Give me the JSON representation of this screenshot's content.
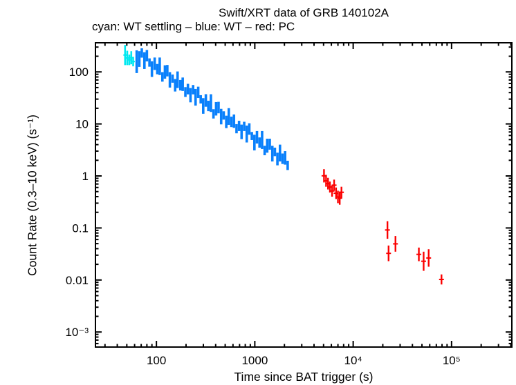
{
  "chart_data": {
    "type": "scatter",
    "title": "Swift/XRT data of GRB 140102A",
    "subtitle": "cyan: WT settling – blue: WT – red: PC",
    "xlabel": "Time since BAT trigger (s)",
    "ylabel": "Count Rate (0.3–10 keV) (s⁻¹)",
    "xscale": "log",
    "yscale": "log",
    "xlim": [
      24,
      410000
    ],
    "ylim": [
      0.000514,
      363
    ],
    "grid": false,
    "legend_position": "subtitle-line",
    "frame_color": "#000000",
    "background_color": "#ffffff",
    "x_major_ticks": [
      {
        "value": 100,
        "label": "100"
      },
      {
        "value": 1000,
        "label": "1000"
      },
      {
        "value": 10000,
        "label": "10⁴"
      },
      {
        "value": 100000,
        "label": "10⁵"
      }
    ],
    "y_major_ticks": [
      {
        "value": 100,
        "label": "100"
      },
      {
        "value": 10,
        "label": "10"
      },
      {
        "value": 1,
        "label": "1"
      },
      {
        "value": 0.1,
        "label": "0.1"
      },
      {
        "value": 0.01,
        "label": "0.01"
      },
      {
        "value": 0.001,
        "label": "10⁻³"
      }
    ],
    "series": [
      {
        "name": "WT settling",
        "mode": "vertical-error-bars",
        "color": "#00e8f0",
        "bar_width": 2.6,
        "cap_width": 5,
        "points_format": [
          "time_s",
          "rate_lo",
          "rate_hi"
        ],
        "points": [
          [
            48,
            135,
            330
          ],
          [
            50.5,
            135,
            255
          ],
          [
            53,
            135,
            215
          ],
          [
            55.5,
            140,
            250
          ],
          [
            58,
            128,
            195
          ]
        ]
      },
      {
        "name": "WT",
        "mode": "vertical-error-bars",
        "color": "#0a80fb",
        "bar_width": 3.6,
        "cap_width": 0,
        "points_format": [
          "time_s",
          "rate_lo",
          "rate_hi"
        ],
        "points": [
          [
            63,
            95,
            260
          ],
          [
            67,
            125,
            250
          ],
          [
            71,
            188,
            284
          ],
          [
            75.5,
            114,
            239
          ],
          [
            80,
            159,
            264
          ],
          [
            85,
            126,
            182
          ],
          [
            90,
            80,
            160
          ],
          [
            96,
            109,
            189
          ],
          [
            102,
            90,
            142
          ],
          [
            108,
            87,
            189
          ],
          [
            115,
            65,
            99
          ],
          [
            122,
            74,
            134
          ],
          [
            129,
            82,
            136
          ],
          [
            137,
            50,
            99
          ],
          [
            146,
            62,
            89
          ],
          [
            155,
            42,
            73
          ],
          [
            164,
            49,
            102
          ],
          [
            175,
            44,
            70
          ],
          [
            185,
            43,
            78
          ],
          [
            197,
            33,
            51
          ],
          [
            209,
            37,
            59
          ],
          [
            222,
            26,
            49
          ],
          [
            236,
            37,
            56
          ],
          [
            250,
            22.5,
            47
          ],
          [
            266,
            31.5,
            52
          ],
          [
            282,
            24.7,
            35.7
          ],
          [
            299,
            15.7,
            31.3
          ],
          [
            318,
            21.4,
            37.3
          ],
          [
            337,
            17.6,
            27.9
          ],
          [
            358,
            17,
            37.2
          ],
          [
            380,
            12.7,
            19.2
          ],
          [
            404,
            14.5,
            26.3
          ],
          [
            428,
            16,
            26.6
          ],
          [
            455,
            9.8,
            19.5
          ],
          [
            483,
            12.1,
            17.5
          ],
          [
            513,
            8.3,
            14.4
          ],
          [
            544,
            9.6,
            20.1
          ],
          [
            578,
            8.7,
            13.8
          ],
          [
            614,
            8.4,
            15.2
          ],
          [
            652,
            6.6,
            9.9
          ],
          [
            692,
            7.3,
            11.5
          ],
          [
            734,
            5.1,
            9.7
          ],
          [
            780,
            7.3,
            11
          ],
          [
            828,
            4.4,
            9.3
          ],
          [
            879,
            6.2,
            10.3
          ],
          [
            933,
            4.9,
            7
          ],
          [
            991,
            3.1,
            6.2
          ],
          [
            1052,
            4.2,
            7.3
          ],
          [
            1117,
            3.5,
            5.5
          ],
          [
            1186,
            3.3,
            7.3
          ],
          [
            1259,
            2.5,
            3.8
          ],
          [
            1337,
            2.8,
            5.2
          ],
          [
            1419,
            3.2,
            5.2
          ],
          [
            1507,
            1.9,
            3.8
          ],
          [
            1600,
            2.4,
            3.5
          ],
          [
            1698,
            1.6,
            2.8
          ],
          [
            1803,
            1.9,
            4
          ],
          [
            1914,
            1.7,
            2.7
          ],
          [
            2032,
            1.65,
            3
          ],
          [
            2158,
            1.3,
            1.96
          ]
        ]
      },
      {
        "name": "PC",
        "mode": "vertical-error-bars",
        "color": "#fb0000",
        "bar_width": 2.4,
        "cap_width": 7,
        "points_format": [
          "time_s",
          "rate_lo",
          "rate_hi"
        ],
        "points": [
          [
            5050,
            0.75,
            1.35
          ],
          [
            5300,
            0.62,
            1.05
          ],
          [
            5550,
            0.55,
            0.92
          ],
          [
            5800,
            0.48,
            0.78
          ],
          [
            6100,
            0.4,
            0.66
          ],
          [
            6400,
            0.52,
            0.85
          ],
          [
            6700,
            0.36,
            0.6
          ],
          [
            7000,
            0.3,
            0.52
          ],
          [
            7300,
            0.28,
            0.5
          ],
          [
            7600,
            0.38,
            0.62
          ],
          [
            22300,
            0.062,
            0.135
          ],
          [
            22900,
            0.023,
            0.046
          ],
          [
            26900,
            0.035,
            0.07
          ],
          [
            46500,
            0.023,
            0.042
          ],
          [
            52000,
            0.015,
            0.035
          ],
          [
            58500,
            0.018,
            0.039
          ],
          [
            79000,
            0.0082,
            0.0128
          ]
        ]
      }
    ]
  }
}
